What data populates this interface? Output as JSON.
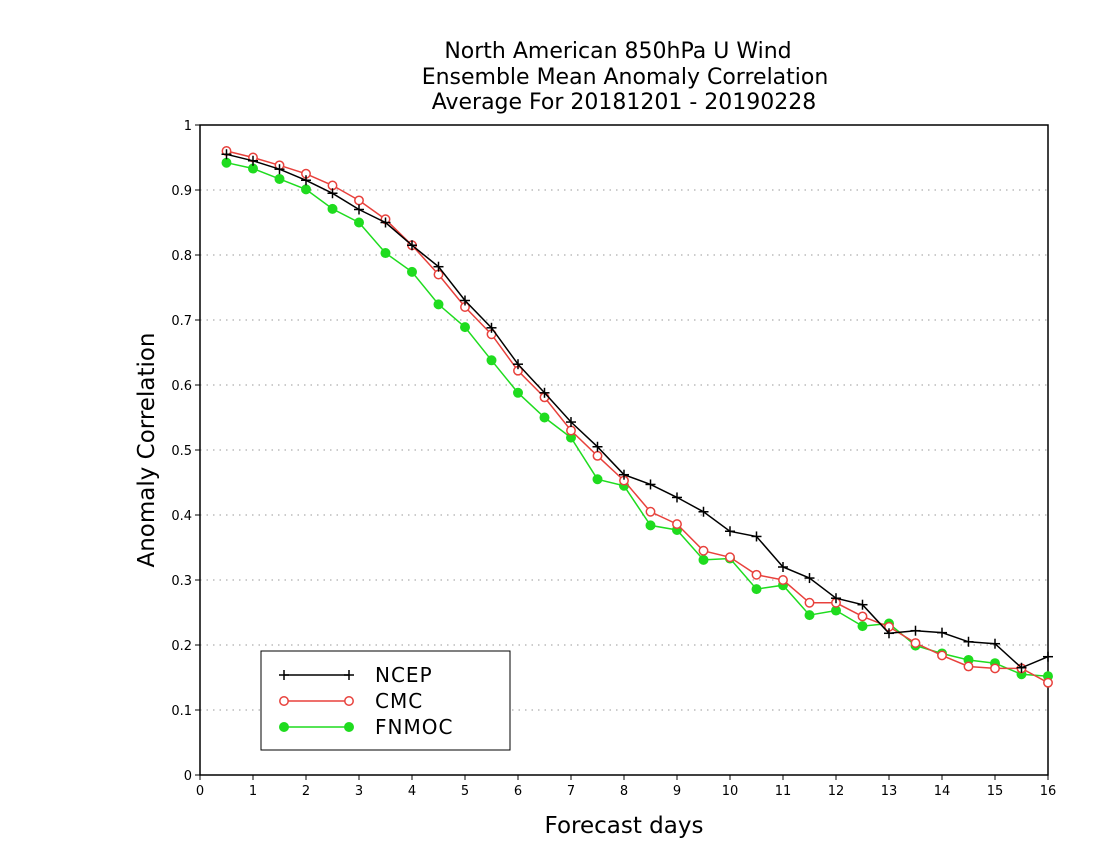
{
  "chart_data": {
    "type": "line",
    "title": [
      "North American 850hPa U Wind",
      "Ensemble Mean Anomaly Correlation",
      "Average For 20181201 - 20190228"
    ],
    "xlabel": "Forecast days",
    "ylabel": "Anomaly Correlation",
    "xlim": [
      0,
      16
    ],
    "ylim": [
      0,
      1
    ],
    "x_ticks": [
      "0",
      "1",
      "2",
      "3",
      "4",
      "5",
      "6",
      "7",
      "8",
      "9",
      "10",
      "11",
      "12",
      "13",
      "14",
      "15",
      "16"
    ],
    "y_ticks": [
      "0",
      "0.1",
      "0.2",
      "0.3",
      "0.4",
      "0.5",
      "0.6",
      "0.7",
      "0.8",
      "0.9",
      "1"
    ],
    "grid": "dotted horizontal",
    "legend_position": "bottom-left",
    "x": [
      0.5,
      1,
      1.5,
      2,
      2.5,
      3,
      3.5,
      4,
      4.5,
      5,
      5.5,
      6,
      6.5,
      7,
      7.5,
      8,
      8.5,
      9,
      9.5,
      10,
      10.5,
      11,
      11.5,
      12,
      12.5,
      13,
      13.5,
      14,
      14.5,
      15,
      15.5,
      16
    ],
    "series": [
      {
        "name": "NCEP",
        "color": "#000000",
        "marker": "plus",
        "values": [
          0.955,
          0.945,
          0.932,
          0.915,
          0.895,
          0.87,
          0.85,
          0.815,
          0.782,
          0.73,
          0.688,
          0.632,
          0.588,
          0.543,
          0.505,
          0.462,
          0.447,
          0.427,
          0.405,
          0.375,
          0.367,
          0.32,
          0.303,
          0.272,
          0.262,
          0.218,
          0.222,
          0.219,
          0.205,
          0.202,
          0.165,
          0.182
        ]
      },
      {
        "name": "CMC",
        "color": "#e8413c",
        "marker": "open-circle",
        "values": [
          0.96,
          0.95,
          0.938,
          0.925,
          0.907,
          0.884,
          0.855,
          0.815,
          0.77,
          0.72,
          0.678,
          0.622,
          0.581,
          0.53,
          0.491,
          0.453,
          0.405,
          0.386,
          0.345,
          0.335,
          0.308,
          0.3,
          0.265,
          0.265,
          0.244,
          0.228,
          0.203,
          0.184,
          0.167,
          0.164,
          0.164,
          0.142
        ]
      },
      {
        "name": "FNMOC",
        "color": "#1fdc1f",
        "marker": "filled-circle",
        "values": [
          0.942,
          0.933,
          0.917,
          0.901,
          0.871,
          0.85,
          0.803,
          0.774,
          0.724,
          0.689,
          0.638,
          0.588,
          0.55,
          0.519,
          0.455,
          0.445,
          0.384,
          0.377,
          0.331,
          0.333,
          0.286,
          0.292,
          0.246,
          0.253,
          0.229,
          0.233,
          0.199,
          0.187,
          0.177,
          0.172,
          0.155,
          0.152
        ]
      }
    ]
  }
}
